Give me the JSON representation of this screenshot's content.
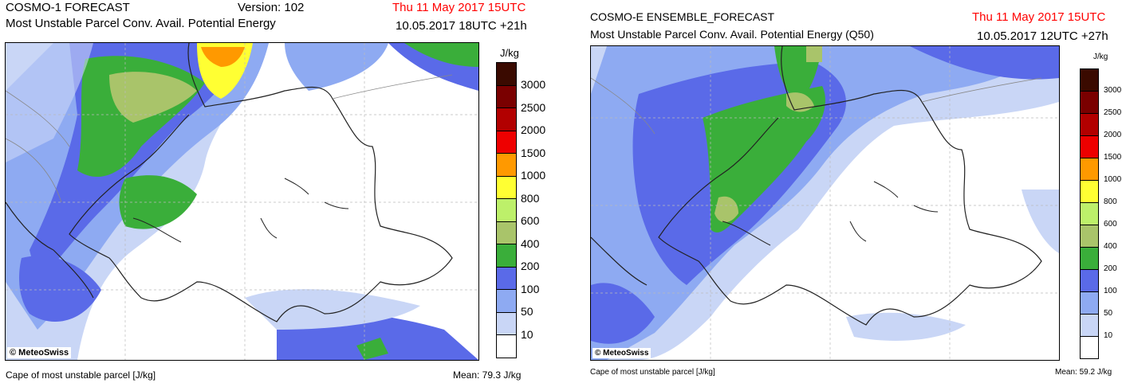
{
  "left": {
    "title": "COSMO-1 FORECAST",
    "version": "Version: 102",
    "date": "Thu 11 May 2017 15UTC",
    "subtitle": "Most Unstable Parcel Conv. Avail. Potential Energy",
    "run": "10.05.2017 18UTC +21h",
    "unit": "J/kg",
    "credit": "© MeteoSwiss",
    "footer": "Cape of most unstable parcel [J/kg]",
    "mean": "Mean:  79.3 J/kg"
  },
  "right": {
    "title": "COSMO-E ENSEMBLE_FORECAST",
    "date": "Thu 11 May 2017 15UTC",
    "subtitle": "Most Unstable Parcel Conv. Avail. Potential Energy (Q50)",
    "run": "10.05.2017 12UTC +27h",
    "unit": "J/kg",
    "credit": "© MeteoSwiss",
    "footer": "Cape of most unstable parcel [J/kg]",
    "mean": "Mean:  59.2 J/kg"
  },
  "colorbar": {
    "levels": [
      "3000",
      "2500",
      "2000",
      "1500",
      "1000",
      "800",
      "600",
      "400",
      "200",
      "100",
      "50",
      "10"
    ],
    "colors": [
      "#3a0a00",
      "#7a0000",
      "#b20000",
      "#ee0000",
      "#ff9900",
      "#ffff33",
      "#bdf06a",
      "#a9c46a",
      "#3aae3a",
      "#5a6ae8",
      "#8eaaf2",
      "#c9d6f6",
      "#ffffff"
    ]
  }
}
